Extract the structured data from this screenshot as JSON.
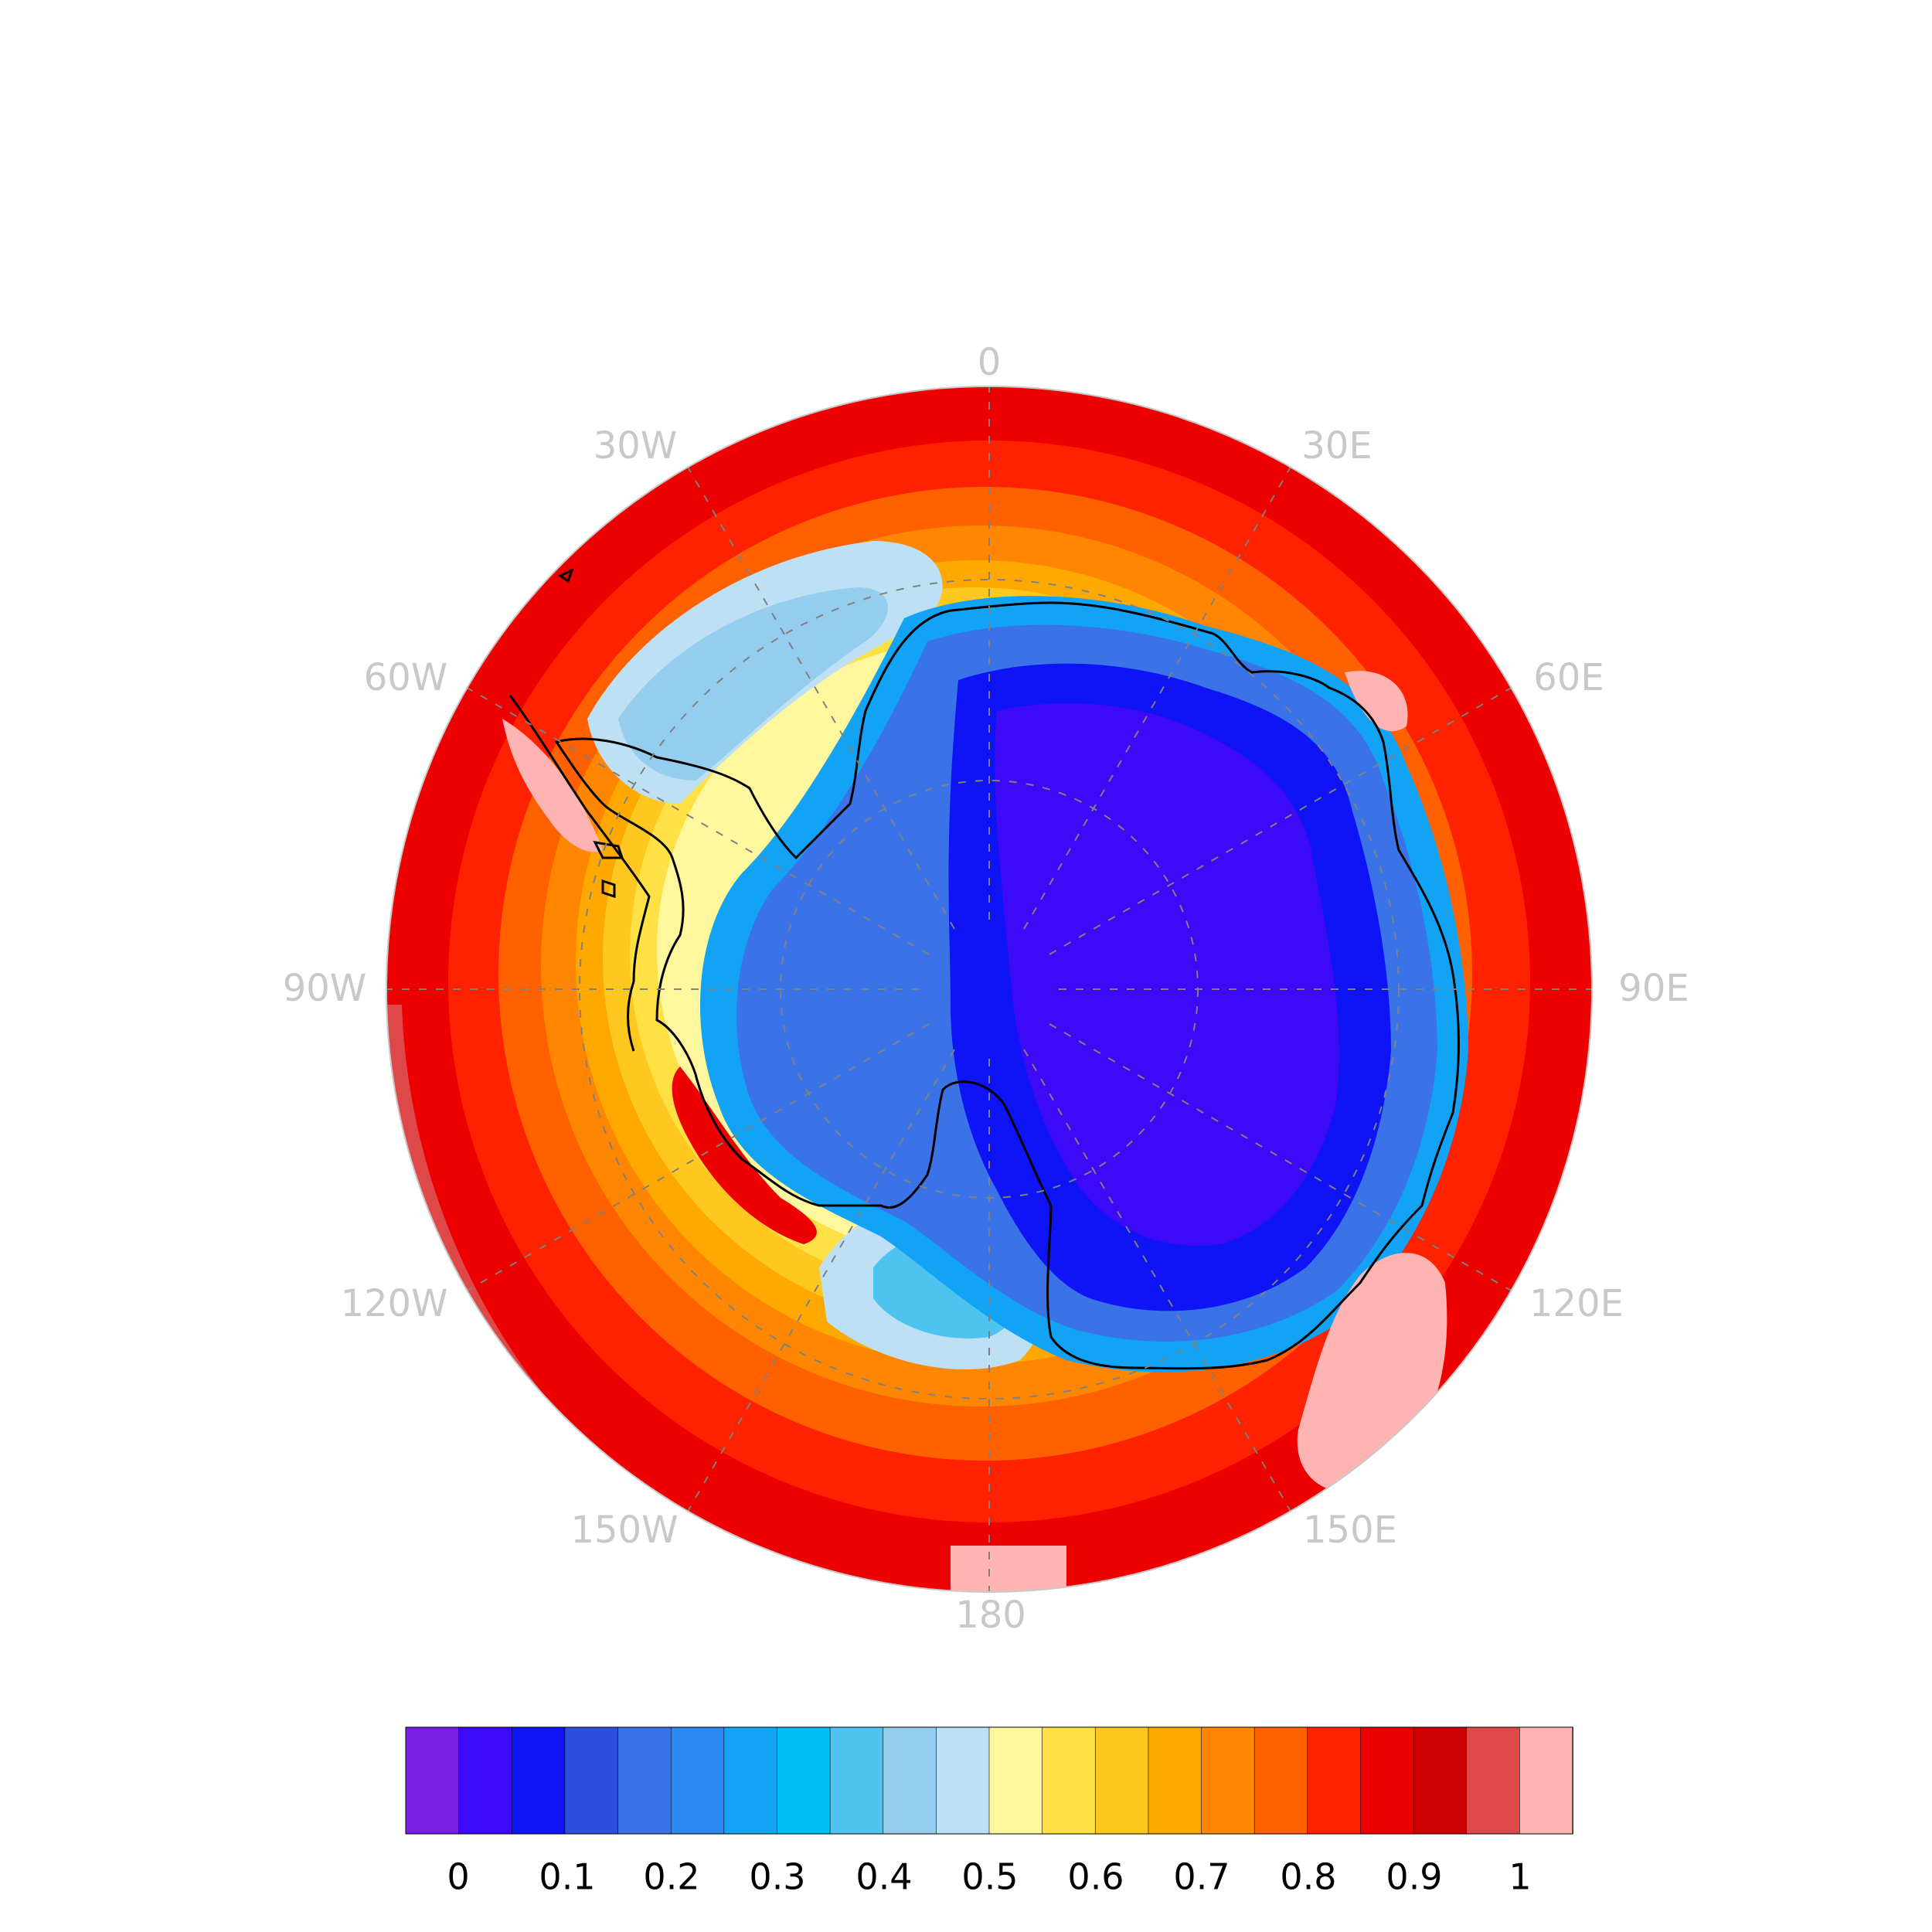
{
  "map": {
    "projection": "south-polar stereographic",
    "longitude_labels": [
      "0",
      "30E",
      "60E",
      "90E",
      "120E",
      "150E",
      "180",
      "150W",
      "120W",
      "90W",
      "60W",
      "30W"
    ],
    "graticule": "dashed",
    "coastline_color": "#000000"
  },
  "colorbar": {
    "colors": [
      "#7a1fe8",
      "#3d0af7",
      "#0e14f5",
      "#2e4ee0",
      "#3a73e8",
      "#2c89f2",
      "#12a3f5",
      "#00c0f7",
      "#4fc3ef",
      "#94cdee",
      "#bde0f5",
      "#fff79d",
      "#ffe145",
      "#ffc820",
      "#ffa900",
      "#ff8600",
      "#ff6100",
      "#ff2200",
      "#ee0000",
      "#cc0000",
      "#de4848",
      "#ffb3b3"
    ],
    "tick_labels": [
      "0",
      "0.1",
      "0.2",
      "0.3",
      "0.4",
      "0.5",
      "0.6",
      "0.7",
      "0.8",
      "0.9",
      "1"
    ]
  }
}
